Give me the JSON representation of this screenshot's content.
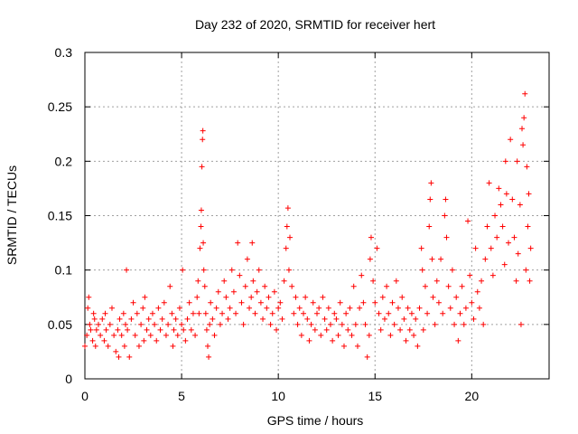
{
  "chart_data": {
    "type": "scatter",
    "title": "Day 232 of 2020, SRMTID for receiver hert",
    "xlabel": "GPS time / hours",
    "ylabel": "SRMTID / TECUs",
    "xlim": [
      0,
      24
    ],
    "ylim": [
      0,
      0.3
    ],
    "xticks": [
      0,
      5,
      10,
      15,
      20
    ],
    "xtick_labels": [
      "0",
      "5",
      "10",
      "15",
      "20"
    ],
    "yticks": [
      0,
      0.05,
      0.1,
      0.15,
      0.2,
      0.25,
      0.3
    ],
    "ytick_labels": [
      "0",
      "0.05",
      "0.1",
      "0.15",
      "0.2",
      "0.25",
      "0.3"
    ],
    "grid": true,
    "marker": "+",
    "color": "#ff0000",
    "series": [
      {
        "name": "SRMTID",
        "points": [
          [
            0.0,
            0.03
          ],
          [
            0.1,
            0.04
          ],
          [
            0.15,
            0.065
          ],
          [
            0.2,
            0.075
          ],
          [
            0.25,
            0.05
          ],
          [
            0.3,
            0.045
          ],
          [
            0.4,
            0.035
          ],
          [
            0.45,
            0.06
          ],
          [
            0.5,
            0.055
          ],
          [
            0.55,
            0.03
          ],
          [
            0.6,
            0.045
          ],
          [
            0.7,
            0.05
          ],
          [
            0.8,
            0.04
          ],
          [
            0.9,
            0.055
          ],
          [
            1.0,
            0.035
          ],
          [
            1.05,
            0.06
          ],
          [
            1.1,
            0.045
          ],
          [
            1.2,
            0.03
          ],
          [
            1.3,
            0.05
          ],
          [
            1.4,
            0.065
          ],
          [
            1.5,
            0.04
          ],
          [
            1.6,
            0.025
          ],
          [
            1.7,
            0.045
          ],
          [
            1.75,
            0.02
          ],
          [
            1.8,
            0.055
          ],
          [
            1.9,
            0.04
          ],
          [
            2.0,
            0.06
          ],
          [
            2.05,
            0.03
          ],
          [
            2.1,
            0.05
          ],
          [
            2.15,
            0.1
          ],
          [
            2.2,
            0.045
          ],
          [
            2.3,
            0.02
          ],
          [
            2.4,
            0.055
          ],
          [
            2.5,
            0.07
          ],
          [
            2.6,
            0.04
          ],
          [
            2.7,
            0.06
          ],
          [
            2.8,
            0.03
          ],
          [
            2.9,
            0.05
          ],
          [
            3.0,
            0.065
          ],
          [
            3.05,
            0.035
          ],
          [
            3.1,
            0.075
          ],
          [
            3.2,
            0.045
          ],
          [
            3.3,
            0.055
          ],
          [
            3.4,
            0.04
          ],
          [
            3.5,
            0.06
          ],
          [
            3.6,
            0.05
          ],
          [
            3.7,
            0.035
          ],
          [
            3.8,
            0.065
          ],
          [
            3.9,
            0.045
          ],
          [
            4.0,
            0.055
          ],
          [
            4.1,
            0.07
          ],
          [
            4.2,
            0.04
          ],
          [
            4.3,
            0.05
          ],
          [
            4.4,
            0.085
          ],
          [
            4.5,
            0.06
          ],
          [
            4.55,
            0.03
          ],
          [
            4.6,
            0.045
          ],
          [
            4.7,
            0.055
          ],
          [
            4.8,
            0.04
          ],
          [
            4.9,
            0.065
          ],
          [
            5.0,
            0.05
          ],
          [
            5.05,
            0.1
          ],
          [
            5.1,
            0.045
          ],
          [
            5.2,
            0.035
          ],
          [
            5.3,
            0.055
          ],
          [
            5.4,
            0.07
          ],
          [
            5.5,
            0.045
          ],
          [
            5.6,
            0.06
          ],
          [
            5.7,
            0.04
          ],
          [
            5.8,
            0.075
          ],
          [
            5.85,
            0.09
          ],
          [
            5.9,
            0.06
          ],
          [
            5.95,
            0.12
          ],
          [
            6.0,
            0.14
          ],
          [
            6.02,
            0.155
          ],
          [
            6.05,
            0.195
          ],
          [
            6.08,
            0.22
          ],
          [
            6.1,
            0.228
          ],
          [
            6.12,
            0.125
          ],
          [
            6.15,
            0.1
          ],
          [
            6.2,
            0.085
          ],
          [
            6.25,
            0.06
          ],
          [
            6.3,
            0.045
          ],
          [
            6.35,
            0.03
          ],
          [
            6.4,
            0.02
          ],
          [
            6.45,
            0.05
          ],
          [
            6.5,
            0.07
          ],
          [
            6.6,
            0.055
          ],
          [
            6.7,
            0.04
          ],
          [
            6.8,
            0.065
          ],
          [
            6.9,
            0.08
          ],
          [
            7.0,
            0.05
          ],
          [
            7.1,
            0.06
          ],
          [
            7.2,
            0.09
          ],
          [
            7.3,
            0.075
          ],
          [
            7.4,
            0.055
          ],
          [
            7.5,
            0.065
          ],
          [
            7.6,
            0.1
          ],
          [
            7.7,
            0.08
          ],
          [
            7.8,
            0.06
          ],
          [
            7.9,
            0.125
          ],
          [
            8.0,
            0.095
          ],
          [
            8.1,
            0.07
          ],
          [
            8.2,
            0.05
          ],
          [
            8.3,
            0.085
          ],
          [
            8.4,
            0.11
          ],
          [
            8.5,
            0.065
          ],
          [
            8.6,
            0.075
          ],
          [
            8.65,
            0.125
          ],
          [
            8.7,
            0.09
          ],
          [
            8.8,
            0.06
          ],
          [
            8.9,
            0.08
          ],
          [
            9.0,
            0.1
          ],
          [
            9.1,
            0.07
          ],
          [
            9.2,
            0.055
          ],
          [
            9.3,
            0.085
          ],
          [
            9.4,
            0.065
          ],
          [
            9.5,
            0.075
          ],
          [
            9.6,
            0.05
          ],
          [
            9.7,
            0.06
          ],
          [
            9.8,
            0.08
          ],
          [
            9.9,
            0.045
          ],
          [
            10.0,
            0.065
          ],
          [
            10.1,
            0.07
          ],
          [
            10.2,
            0.055
          ],
          [
            10.3,
            0.09
          ],
          [
            10.4,
            0.12
          ],
          [
            10.45,
            0.14
          ],
          [
            10.5,
            0.157
          ],
          [
            10.55,
            0.1
          ],
          [
            10.6,
            0.13
          ],
          [
            10.7,
            0.085
          ],
          [
            10.8,
            0.06
          ],
          [
            10.9,
            0.075
          ],
          [
            11.0,
            0.05
          ],
          [
            11.1,
            0.065
          ],
          [
            11.2,
            0.04
          ],
          [
            11.3,
            0.06
          ],
          [
            11.4,
            0.075
          ],
          [
            11.5,
            0.055
          ],
          [
            11.6,
            0.035
          ],
          [
            11.7,
            0.05
          ],
          [
            11.8,
            0.07
          ],
          [
            11.9,
            0.045
          ],
          [
            12.0,
            0.06
          ],
          [
            12.1,
            0.065
          ],
          [
            12.2,
            0.04
          ],
          [
            12.3,
            0.075
          ],
          [
            12.4,
            0.055
          ],
          [
            12.5,
            0.045
          ],
          [
            12.6,
            0.065
          ],
          [
            12.7,
            0.05
          ],
          [
            12.8,
            0.035
          ],
          [
            12.9,
            0.06
          ],
          [
            13.0,
            0.055
          ],
          [
            13.1,
            0.04
          ],
          [
            13.2,
            0.07
          ],
          [
            13.3,
            0.05
          ],
          [
            13.4,
            0.03
          ],
          [
            13.5,
            0.06
          ],
          [
            13.6,
            0.045
          ],
          [
            13.7,
            0.065
          ],
          [
            13.8,
            0.04
          ],
          [
            13.9,
            0.085
          ],
          [
            14.0,
            0.05
          ],
          [
            14.1,
            0.03
          ],
          [
            14.2,
            0.065
          ],
          [
            14.3,
            0.095
          ],
          [
            14.4,
            0.07
          ],
          [
            14.5,
            0.05
          ],
          [
            14.6,
            0.02
          ],
          [
            14.7,
            0.04
          ],
          [
            14.75,
            0.11
          ],
          [
            14.8,
            0.13
          ],
          [
            14.9,
            0.09
          ],
          [
            15.0,
            0.07
          ],
          [
            15.1,
            0.12
          ],
          [
            15.2,
            0.06
          ],
          [
            15.3,
            0.045
          ],
          [
            15.4,
            0.075
          ],
          [
            15.5,
            0.055
          ],
          [
            15.6,
            0.085
          ],
          [
            15.7,
            0.06
          ],
          [
            15.8,
            0.04
          ],
          [
            15.9,
            0.07
          ],
          [
            16.0,
            0.05
          ],
          [
            16.1,
            0.09
          ],
          [
            16.2,
            0.065
          ],
          [
            16.3,
            0.045
          ],
          [
            16.4,
            0.075
          ],
          [
            16.5,
            0.055
          ],
          [
            16.6,
            0.035
          ],
          [
            16.7,
            0.065
          ],
          [
            16.8,
            0.045
          ],
          [
            16.9,
            0.06
          ],
          [
            17.0,
            0.04
          ],
          [
            17.1,
            0.055
          ],
          [
            17.2,
            0.03
          ],
          [
            17.3,
            0.065
          ],
          [
            17.4,
            0.12
          ],
          [
            17.45,
            0.1
          ],
          [
            17.5,
            0.045
          ],
          [
            17.6,
            0.085
          ],
          [
            17.7,
            0.06
          ],
          [
            17.8,
            0.14
          ],
          [
            17.85,
            0.165
          ],
          [
            17.9,
            0.18
          ],
          [
            17.95,
            0.11
          ],
          [
            18.0,
            0.075
          ],
          [
            18.1,
            0.05
          ],
          [
            18.2,
            0.09
          ],
          [
            18.3,
            0.07
          ],
          [
            18.4,
            0.11
          ],
          [
            18.5,
            0.06
          ],
          [
            18.6,
            0.15
          ],
          [
            18.65,
            0.165
          ],
          [
            18.7,
            0.13
          ],
          [
            18.8,
            0.085
          ],
          [
            18.9,
            0.065
          ],
          [
            19.0,
            0.1
          ],
          [
            19.1,
            0.05
          ],
          [
            19.2,
            0.075
          ],
          [
            19.3,
            0.035
          ],
          [
            19.4,
            0.06
          ],
          [
            19.5,
            0.085
          ],
          [
            19.6,
            0.05
          ],
          [
            19.7,
            0.065
          ],
          [
            19.8,
            0.145
          ],
          [
            19.9,
            0.095
          ],
          [
            20.0,
            0.07
          ],
          [
            20.1,
            0.055
          ],
          [
            20.2,
            0.12
          ],
          [
            20.3,
            0.08
          ],
          [
            20.4,
            0.065
          ],
          [
            20.5,
            0.09
          ],
          [
            20.6,
            0.05
          ],
          [
            20.7,
            0.11
          ],
          [
            20.8,
            0.14
          ],
          [
            20.9,
            0.18
          ],
          [
            21.0,
            0.12
          ],
          [
            21.1,
            0.095
          ],
          [
            21.2,
            0.15
          ],
          [
            21.3,
            0.13
          ],
          [
            21.4,
            0.175
          ],
          [
            21.5,
            0.16
          ],
          [
            21.6,
            0.14
          ],
          [
            21.7,
            0.105
          ],
          [
            21.75,
            0.2
          ],
          [
            21.8,
            0.17
          ],
          [
            21.9,
            0.125
          ],
          [
            22.0,
            0.22
          ],
          [
            22.1,
            0.165
          ],
          [
            22.2,
            0.13
          ],
          [
            22.3,
            0.09
          ],
          [
            22.35,
            0.2
          ],
          [
            22.4,
            0.115
          ],
          [
            22.5,
            0.16
          ],
          [
            22.55,
            0.05
          ],
          [
            22.6,
            0.23
          ],
          [
            22.65,
            0.215
          ],
          [
            22.7,
            0.24
          ],
          [
            22.75,
            0.262
          ],
          [
            22.8,
            0.1
          ],
          [
            22.85,
            0.195
          ],
          [
            22.9,
            0.14
          ],
          [
            22.95,
            0.17
          ],
          [
            23.0,
            0.09
          ],
          [
            23.05,
            0.12
          ]
        ]
      }
    ]
  }
}
